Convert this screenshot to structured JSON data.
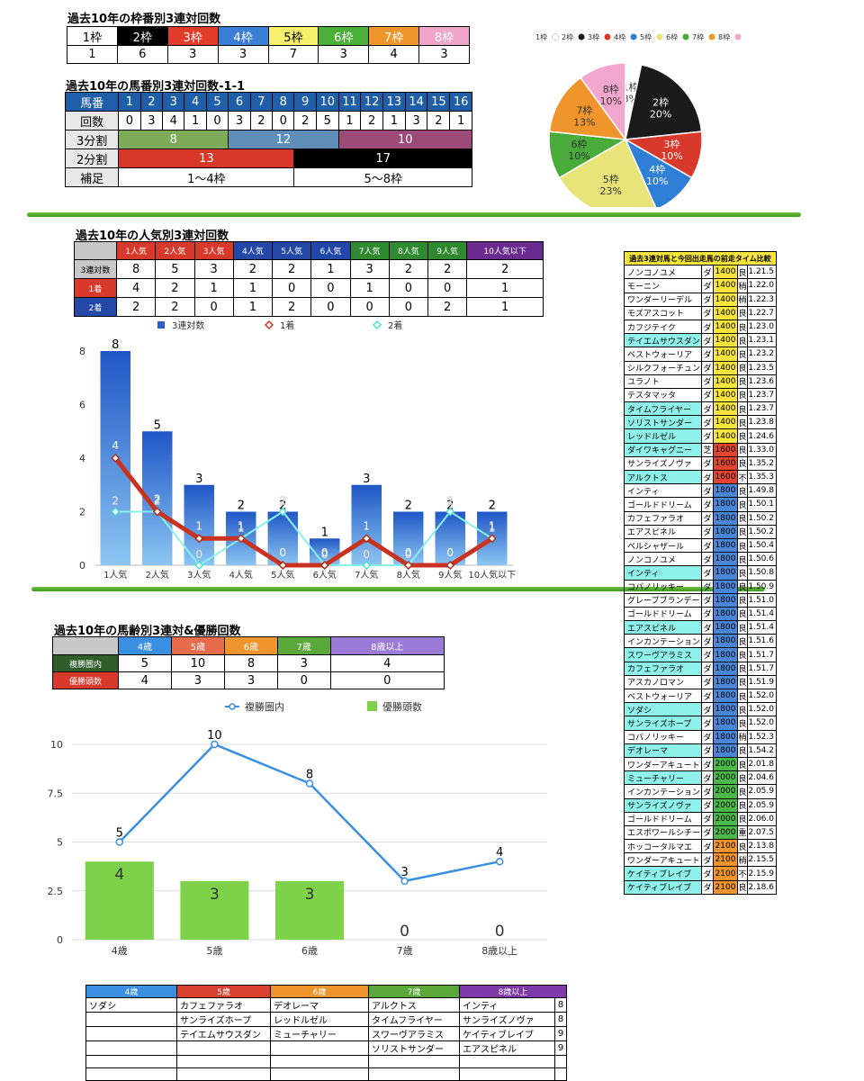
{
  "waku": {
    "title": "過去10年の枠番別3連対回数",
    "headers": [
      "1枠",
      "2枠",
      "3枠",
      "4枠",
      "5枠",
      "6枠",
      "7枠",
      "8枠"
    ],
    "values": [
      "1",
      "6",
      "3",
      "3",
      "7",
      "3",
      "4",
      "3"
    ],
    "colors": [
      "#ffffff",
      "#000000",
      "#e23b2a",
      "#3a7fd5",
      "#f6f06a",
      "#4caf3a",
      "#f0952c",
      "#f0a5cb"
    ],
    "text_colors": [
      "#000",
      "#fff",
      "#fff",
      "#fff",
      "#000",
      "#fff",
      "#fff",
      "#fff"
    ]
  },
  "umaban": {
    "title": "過去10年の馬番別3連対回数-1-1",
    "label_umaban": "馬番",
    "numbers": [
      "1",
      "2",
      "3",
      "4",
      "5",
      "6",
      "7",
      "8",
      "9",
      "10",
      "11",
      "12",
      "13",
      "14",
      "15",
      "16"
    ],
    "label_count": "回数",
    "counts": [
      "0",
      "3",
      "4",
      "1",
      "0",
      "3",
      "2",
      "0",
      "2",
      "5",
      "1",
      "2",
      "1",
      "3",
      "2",
      "1"
    ],
    "label_3": "3分割",
    "split3": [
      "8",
      "12",
      "10"
    ],
    "label_2": "2分割",
    "split2": [
      "13",
      "17"
    ],
    "label_note": "補足",
    "notes": [
      "1〜4枠",
      "5〜8枠"
    ]
  },
  "pie": {
    "legend": [
      "1枠",
      "2枠",
      "3枠",
      "4枠",
      "5枠",
      "6枠",
      "7枠",
      "8枠"
    ],
    "labels": [
      "1枠\n3%",
      "2枠\n20%",
      "3枠\n10%",
      "4枠\n10%",
      "5枠\n23%",
      "6枠\n10%",
      "7枠\n13%",
      "8枠\n10%"
    ]
  },
  "ninki": {
    "title": "過去10年の人気別3連対回数",
    "headers": [
      "1人気",
      "2人気",
      "3人気",
      "4人気",
      "5人気",
      "6人気",
      "7人気",
      "8人気",
      "9人気",
      "10人気以下"
    ],
    "rows": [
      {
        "label": "3連対数",
        "values": [
          "8",
          "5",
          "3",
          "2",
          "2",
          "1",
          "3",
          "2",
          "2",
          "2"
        ]
      },
      {
        "label": "1着",
        "values": [
          "4",
          "2",
          "1",
          "1",
          "0",
          "0",
          "1",
          "0",
          "0",
          "1"
        ]
      },
      {
        "label": "2着",
        "values": [
          "2",
          "2",
          "0",
          "1",
          "2",
          "0",
          "0",
          "0",
          "2",
          "1"
        ]
      }
    ]
  },
  "age": {
    "title": "過去10年の馬齢別3連対&優勝回数",
    "headers": [
      "4歳",
      "5歳",
      "6歳",
      "7歳",
      "8歳以上"
    ],
    "rows": [
      {
        "label": "複勝圏内",
        "values": [
          "5",
          "10",
          "8",
          "3",
          "4"
        ]
      },
      {
        "label": "優勝頭数",
        "values": [
          "4",
          "3",
          "3",
          "0",
          "0"
        ]
      }
    ]
  },
  "times": {
    "title": "過去3連対馬と今回出走馬の前走タイム比較",
    "rows": [
      [
        "ノンコノユメ",
        "ダ",
        "1400",
        "良",
        "1.21.5"
      ],
      [
        "モーニン",
        "ダ",
        "1400",
        "稍",
        "1.22.0"
      ],
      [
        "ワンダーリーデル",
        "ダ",
        "1400",
        "稍",
        "1.22.3"
      ],
      [
        "モズアスコット",
        "ダ",
        "1400",
        "良",
        "1.22.7"
      ],
      [
        "カフジテイク",
        "ダ",
        "1400",
        "良",
        "1.23.0"
      ],
      [
        "テイエムサウスダン",
        "ダ",
        "1400",
        "良",
        "1.23.1"
      ],
      [
        "ベストウォーリア",
        "ダ",
        "1400",
        "良",
        "1.23.2"
      ],
      [
        "シルクフォーチュン",
        "ダ",
        "1400",
        "良",
        "1.23.5"
      ],
      [
        "ユラノト",
        "ダ",
        "1400",
        "良",
        "1.23.6"
      ],
      [
        "テスタマッタ",
        "ダ",
        "1400",
        "良",
        "1.23.7"
      ],
      [
        "タイムフライヤー",
        "ダ",
        "1400",
        "良",
        "1.23.7"
      ],
      [
        "ソリストサンダー",
        "ダ",
        "1400",
        "良",
        "1.23.8"
      ],
      [
        "レッドルゼル",
        "ダ",
        "1400",
        "良",
        "1.24.6"
      ],
      [
        "ダイワキャグニー",
        "芝",
        "1600",
        "良",
        "1.33.0"
      ],
      [
        "サンライズノヴァ",
        "ダ",
        "1600",
        "良",
        "1.35.2"
      ],
      [
        "アルクトス",
        "ダ",
        "1600",
        "不",
        "1.35.3"
      ],
      [
        "インティ",
        "ダ",
        "1800",
        "良",
        "1.49.8"
      ],
      [
        "ゴールドドリーム",
        "ダ",
        "1800",
        "良",
        "1.50.1"
      ],
      [
        "カフェファラオ",
        "ダ",
        "1800",
        "良",
        "1.50.2"
      ],
      [
        "エアスピネル",
        "ダ",
        "1800",
        "良",
        "1.50.2"
      ],
      [
        "ベルシャザール",
        "ダ",
        "1800",
        "良",
        "1.50.4"
      ],
      [
        "ノンコノユメ",
        "ダ",
        "1800",
        "良",
        "1.50.6"
      ],
      [
        "インティ",
        "ダ",
        "1800",
        "良",
        "1.50.8"
      ],
      [
        "コパノリッキー",
        "ダ",
        "1800",
        "良",
        "1.50.9"
      ],
      [
        "グレープブランデー",
        "ダ",
        "1800",
        "良",
        "1.51.0"
      ],
      [
        "ゴールドドリーム",
        "ダ",
        "1800",
        "良",
        "1.51.4"
      ],
      [
        "エアスピネル",
        "ダ",
        "1800",
        "良",
        "1.51.4"
      ],
      [
        "インカンテーション",
        "ダ",
        "1800",
        "良",
        "1.51.6"
      ],
      [
        "スワーヴアラミス",
        "ダ",
        "1800",
        "良",
        "1.51.7"
      ],
      [
        "カフェファラオ",
        "ダ",
        "1800",
        "良",
        "1.51.7"
      ],
      [
        "アスカノロマン",
        "ダ",
        "1800",
        "良",
        "1.51.9"
      ],
      [
        "ベストウォーリア",
        "ダ",
        "1800",
        "良",
        "1.52.0"
      ],
      [
        "ソダシ",
        "ダ",
        "1800",
        "良",
        "1.52.0"
      ],
      [
        "サンライズホープ",
        "ダ",
        "1800",
        "良",
        "1.52.0"
      ],
      [
        "コパノリッキー",
        "ダ",
        "1800",
        "稍",
        "1.52.3"
      ],
      [
        "デオレーマ",
        "ダ",
        "1800",
        "良",
        "1.54.2"
      ],
      [
        "ワンダーアキュート",
        "ダ",
        "2000",
        "良",
        "2.01.8"
      ],
      [
        "ミューチャリー",
        "ダ",
        "2000",
        "良",
        "2.04.6"
      ],
      [
        "インカンテーション",
        "ダ",
        "2000",
        "良",
        "2.05.9"
      ],
      [
        "サンライズノヴァ",
        "ダ",
        "2000",
        "良",
        "2.05.9"
      ],
      [
        "ゴールドドリーム",
        "ダ",
        "2000",
        "良",
        "2.06.0"
      ],
      [
        "エスポワールシチー",
        "ダ",
        "2000",
        "重",
        "2.07.5"
      ],
      [
        "ホッコータルマエ",
        "ダ",
        "2100",
        "良",
        "2.13.8"
      ],
      [
        "ワンダーアキュート",
        "ダ",
        "2100",
        "稍",
        "2.15.5"
      ],
      [
        "ケイティブレイブ",
        "ダ",
        "2100",
        "不",
        "2.15.9"
      ],
      [
        "ケイティブレイブ",
        "ダ",
        "2100",
        "良",
        "2.18.6"
      ]
    ],
    "highlight": [
      false,
      false,
      false,
      false,
      false,
      true,
      false,
      false,
      false,
      false,
      true,
      true,
      true,
      true,
      false,
      true,
      false,
      false,
      false,
      false,
      false,
      false,
      true,
      false,
      false,
      false,
      true,
      false,
      true,
      true,
      false,
      false,
      true,
      true,
      false,
      true,
      false,
      true,
      false,
      true,
      false,
      false,
      false,
      false,
      true,
      true
    ]
  },
  "bottom": {
    "headers": [
      "4歳",
      "5歳",
      "6歳",
      "7歳",
      "8歳以上"
    ],
    "colors": [
      "#3a8fe0",
      "#d8412f",
      "#f0952c",
      "#5aa83a",
      "#7d3aa8"
    ],
    "col4": [
      "ソダシ"
    ],
    "col5": [
      "カフェファラオ",
      "サンライズホープ",
      "テイエムサウスダン"
    ],
    "col6": [
      "デオレーマ",
      "レッドルゼル",
      "ミューチャリー"
    ],
    "col7": [
      "アルクトス",
      "タイムフライヤー",
      "スワーヴアラミス",
      "ソリストサンダー"
    ],
    "col8": [
      "インティ",
      "サンライズノヴァ",
      "ケイティブレイブ",
      "エアスピネル"
    ],
    "col8num": [
      "8",
      "8",
      "9",
      "9"
    ]
  },
  "chart_data": [
    {
      "type": "pie",
      "categories": [
        "1枠",
        "2枠",
        "3枠",
        "4枠",
        "5枠",
        "6枠",
        "7枠",
        "8枠"
      ],
      "values": [
        1,
        6,
        3,
        3,
        7,
        3,
        4,
        3
      ],
      "percent": [
        3,
        20,
        10,
        10,
        23,
        10,
        13,
        10
      ],
      "colors": [
        "#ffffff",
        "#1a1a1a",
        "#d8392a",
        "#2f7fd6",
        "#e9e47a",
        "#49ab3a",
        "#f0952c",
        "#f3a7cf"
      ],
      "legend": "top"
    },
    {
      "type": "bar",
      "categories": [
        "1人気",
        "2人気",
        "3人気",
        "4人気",
        "5人気",
        "6人気",
        "7人気",
        "8人気",
        "9人気",
        "10人気以下"
      ],
      "series": [
        {
          "name": "3連対数",
          "type": "bar",
          "values": [
            8,
            5,
            3,
            2,
            2,
            1,
            3,
            2,
            2,
            2
          ]
        },
        {
          "name": "1着",
          "type": "line",
          "values": [
            4,
            2,
            1,
            1,
            0,
            0,
            1,
            0,
            0,
            1
          ]
        },
        {
          "name": "2着",
          "type": "line",
          "values": [
            2,
            2,
            0,
            1,
            2,
            0,
            0,
            0,
            2,
            1
          ]
        }
      ],
      "yticks": [
        0,
        2,
        4,
        6,
        8
      ],
      "ylim": [
        0,
        8
      ],
      "legend": "top"
    },
    {
      "type": "bar",
      "categories": [
        "4歳",
        "5歳",
        "6歳",
        "7歳",
        "8歳以上"
      ],
      "series": [
        {
          "name": "複勝圏内",
          "type": "line",
          "values": [
            5,
            10,
            8,
            3,
            4
          ]
        },
        {
          "name": "優勝頭数",
          "type": "bar",
          "values": [
            4,
            3,
            3,
            0,
            0
          ]
        }
      ],
      "yticks": [
        "0",
        "2.5",
        "5",
        "7.5",
        "10"
      ],
      "ylim": [
        0,
        10
      ],
      "legend": "top"
    }
  ]
}
